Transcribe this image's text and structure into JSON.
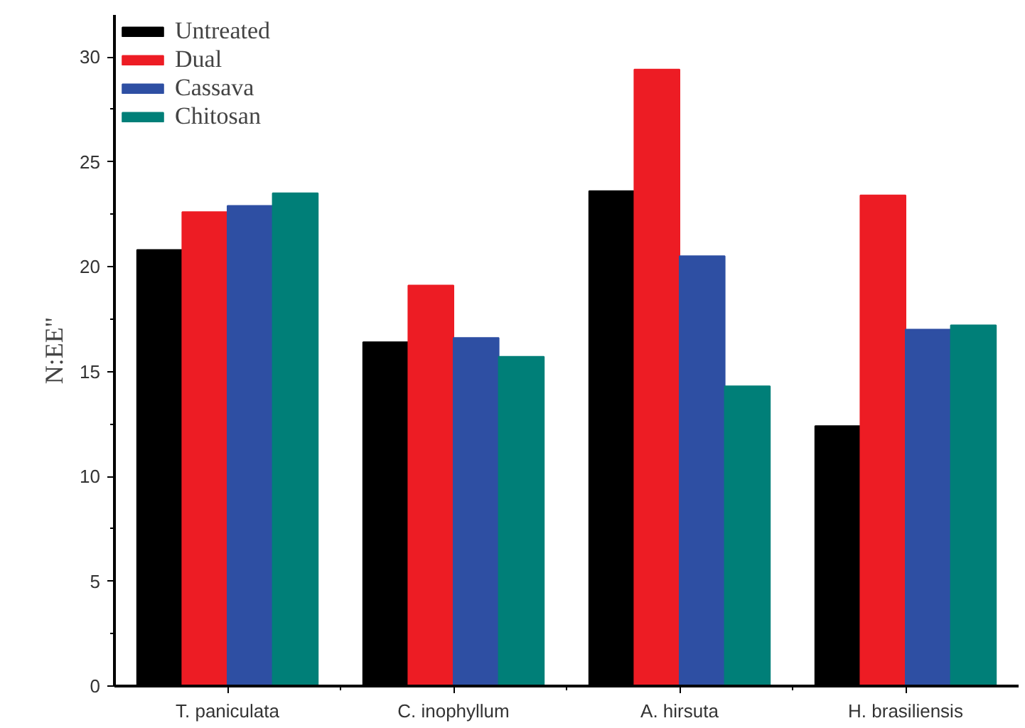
{
  "chart_data": {
    "type": "bar",
    "ylabel": "N:EE\"",
    "categories": [
      "T. paniculata",
      "C. inophyllum",
      "A. hirsuta",
      "H. brasiliensis"
    ],
    "series": [
      {
        "name": "Untreated",
        "color": "#000000",
        "values": [
          20.8,
          16.4,
          23.6,
          12.4
        ]
      },
      {
        "name": "Dual",
        "color": "#ed1c24",
        "values": [
          22.6,
          19.1,
          29.4,
          23.4
        ]
      },
      {
        "name": "Cassava",
        "color": "#2e4fa3",
        "values": [
          22.9,
          16.6,
          20.5,
          17.0
        ]
      },
      {
        "name": "Chitosan",
        "color": "#007f78",
        "values": [
          23.5,
          15.7,
          14.3,
          17.2
        ]
      }
    ],
    "ylim": [
      0,
      32
    ],
    "yticks": [
      0,
      5,
      10,
      15,
      20,
      25,
      30
    ],
    "grid": false,
    "legend": "top left"
  }
}
